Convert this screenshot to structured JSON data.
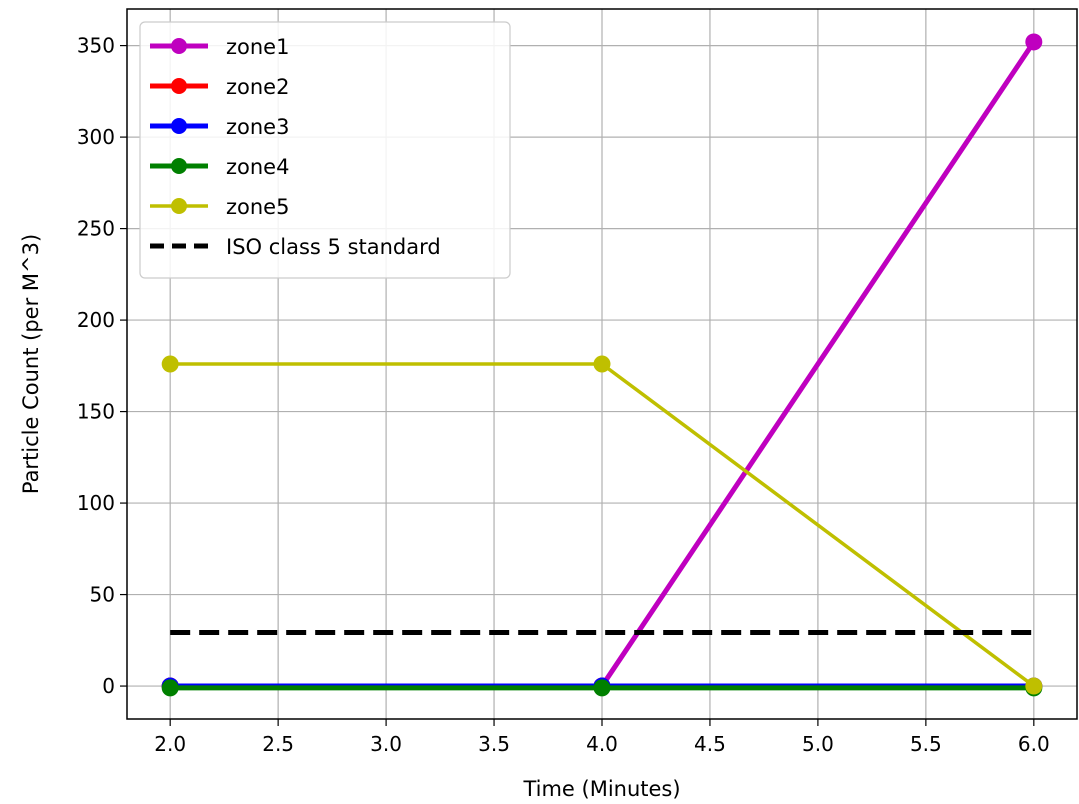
{
  "chart_data": {
    "type": "line",
    "title": "",
    "xlabel": "Time (Minutes)",
    "ylabel": "Particle Count (per M^3)",
    "xlim": [
      1.8,
      6.2
    ],
    "ylim": [
      -18,
      370
    ],
    "xticks": [
      2.0,
      2.5,
      3.0,
      3.5,
      4.0,
      4.5,
      5.0,
      5.5,
      6.0
    ],
    "xtick_labels": [
      "2.0",
      "2.5",
      "3.0",
      "3.5",
      "4.0",
      "4.5",
      "5.0",
      "5.5",
      "6.0"
    ],
    "yticks": [
      0,
      50,
      100,
      150,
      200,
      250,
      300,
      350
    ],
    "ytick_labels": [
      "0",
      "50",
      "100",
      "150",
      "200",
      "250",
      "300",
      "350"
    ],
    "grid": true,
    "legend_position": "upper-left",
    "x": [
      2.0,
      4.0,
      6.0
    ],
    "series": [
      {
        "name": "zone1",
        "values": [
          0,
          0,
          352
        ],
        "color": "#bf00bf",
        "marker": "circle",
        "width": "thick"
      },
      {
        "name": "zone2",
        "values": [
          0,
          0,
          0
        ],
        "color": "#ff0000",
        "marker": "circle",
        "width": "thick"
      },
      {
        "name": "zone3",
        "values": [
          0,
          0,
          0
        ],
        "color": "#0000ff",
        "marker": "circle",
        "width": "thick"
      },
      {
        "name": "zone4",
        "values": [
          -1,
          -1,
          -1
        ],
        "color": "#008000",
        "marker": "circle",
        "width": "thick"
      },
      {
        "name": "zone5",
        "values": [
          176,
          176,
          0
        ],
        "color": "#bfbf00",
        "marker": "circle",
        "width": "normal"
      },
      {
        "name": "ISO class 5 standard",
        "values": [
          29.3,
          29.3,
          29.3
        ],
        "color": "#000000",
        "marker": "none",
        "width": "thick",
        "dashed": true
      }
    ]
  }
}
